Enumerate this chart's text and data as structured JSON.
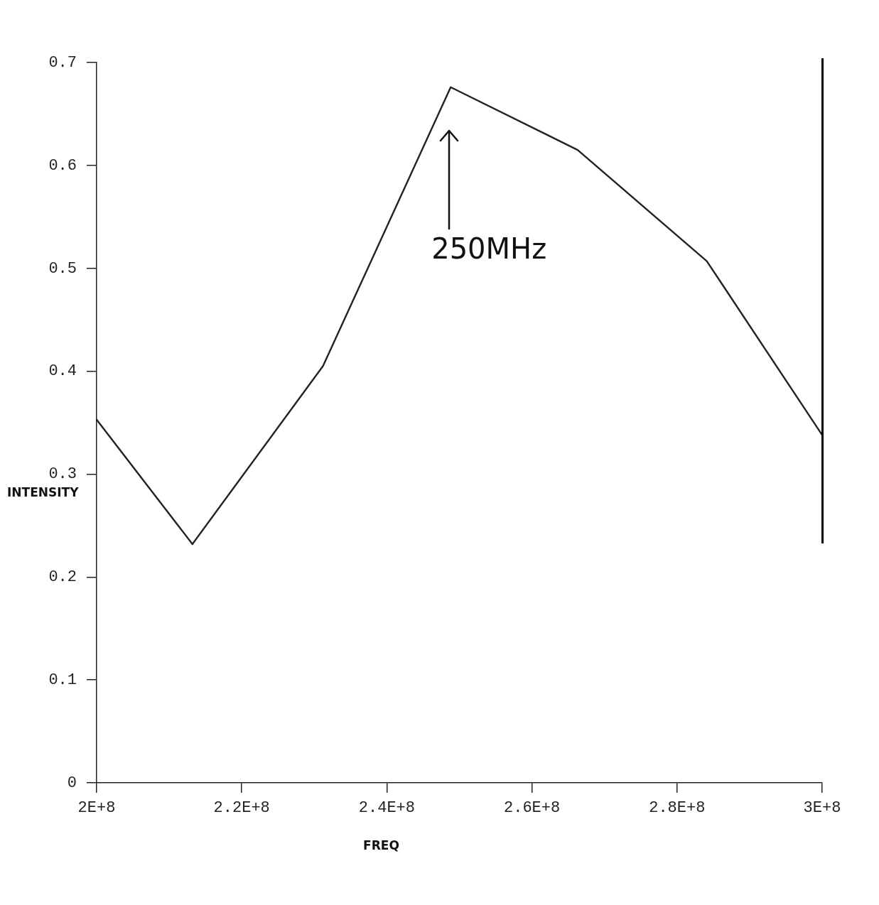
{
  "chart_data": {
    "type": "line",
    "xlabel": "FREQ",
    "ylabel": "INTENSITY",
    "xlim": [
      200000000,
      300000000
    ],
    "ylim": [
      0,
      0.7
    ],
    "xticks": [
      {
        "value": 200000000,
        "label": "2E+8"
      },
      {
        "value": 220000000,
        "label": "2.2E+8"
      },
      {
        "value": 240000000,
        "label": "2.4E+8"
      },
      {
        "value": 260000000,
        "label": "2.6E+8"
      },
      {
        "value": 280000000,
        "label": "2.8E+8"
      },
      {
        "value": 300000000,
        "label": "3E+8"
      }
    ],
    "yticks": [
      0,
      0.1,
      0.2,
      0.3,
      0.4,
      0.5,
      0.6,
      0.7
    ],
    "series": [
      {
        "color": "#222222",
        "x": [
          200000000,
          213200000,
          231200000,
          248800000,
          266300000,
          284100000,
          300000000
        ],
        "values": [
          0.353,
          0.232,
          0.405,
          0.676,
          0.615,
          0.507,
          0.338
        ]
      }
    ],
    "annotations": [
      "250MHz"
    ],
    "marker": "none",
    "line_style": "solid",
    "grid": false,
    "legend": false
  }
}
